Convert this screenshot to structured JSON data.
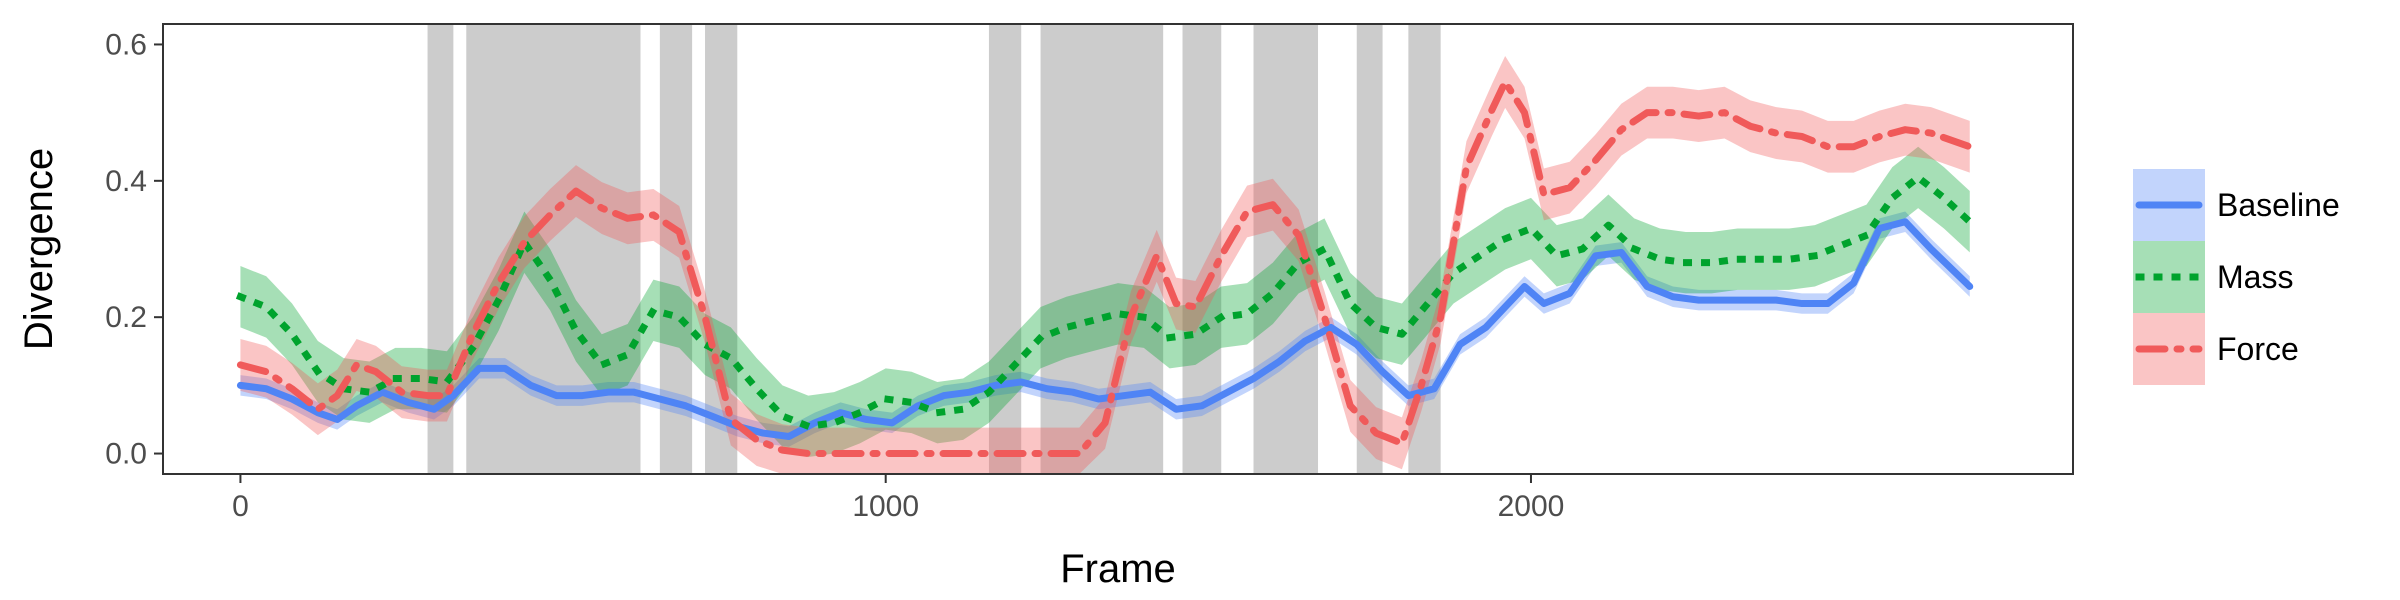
{
  "chart_data": {
    "type": "line",
    "xlabel": "Frame",
    "ylabel": "Divergence",
    "xlim": [
      -120,
      2840
    ],
    "ylim": [
      -0.03,
      0.63
    ],
    "xticks": [
      0,
      1000,
      2000
    ],
    "xtick_labels": [
      "0",
      "1000",
      "2000"
    ],
    "yticks": [
      0.0,
      0.2,
      0.4,
      0.6
    ],
    "ytick_labels": [
      "0.0",
      "0.2",
      "0.4",
      "0.6"
    ],
    "grid": false,
    "legend_position": "right",
    "shaded_intervals": [
      [
        290,
        330
      ],
      [
        350,
        620
      ],
      [
        650,
        700
      ],
      [
        720,
        770
      ],
      [
        1160,
        1210
      ],
      [
        1240,
        1430
      ],
      [
        1460,
        1520
      ],
      [
        1570,
        1670
      ],
      [
        1730,
        1770
      ],
      [
        1810,
        1860
      ]
    ],
    "series": [
      {
        "name": "Baseline",
        "color": "#4f84f5",
        "line_style": "solid",
        "points": [
          [
            0,
            0.1
          ],
          [
            40,
            0.095
          ],
          [
            80,
            0.08
          ],
          [
            120,
            0.06
          ],
          [
            150,
            0.05
          ],
          [
            180,
            0.07
          ],
          [
            220,
            0.09
          ],
          [
            260,
            0.075
          ],
          [
            300,
            0.065
          ],
          [
            330,
            0.085
          ],
          [
            370,
            0.125
          ],
          [
            410,
            0.125
          ],
          [
            450,
            0.1
          ],
          [
            490,
            0.085
          ],
          [
            530,
            0.085
          ],
          [
            570,
            0.09
          ],
          [
            610,
            0.09
          ],
          [
            650,
            0.08
          ],
          [
            690,
            0.07
          ],
          [
            730,
            0.055
          ],
          [
            770,
            0.04
          ],
          [
            810,
            0.03
          ],
          [
            850,
            0.025
          ],
          [
            890,
            0.045
          ],
          [
            930,
            0.06
          ],
          [
            970,
            0.05
          ],
          [
            1010,
            0.045
          ],
          [
            1050,
            0.07
          ],
          [
            1090,
            0.085
          ],
          [
            1130,
            0.09
          ],
          [
            1170,
            0.1
          ],
          [
            1210,
            0.105
          ],
          [
            1250,
            0.095
          ],
          [
            1290,
            0.09
          ],
          [
            1330,
            0.08
          ],
          [
            1370,
            0.085
          ],
          [
            1410,
            0.09
          ],
          [
            1450,
            0.065
          ],
          [
            1490,
            0.07
          ],
          [
            1530,
            0.09
          ],
          [
            1570,
            0.11
          ],
          [
            1610,
            0.135
          ],
          [
            1650,
            0.165
          ],
          [
            1690,
            0.185
          ],
          [
            1730,
            0.16
          ],
          [
            1770,
            0.12
          ],
          [
            1810,
            0.085
          ],
          [
            1850,
            0.095
          ],
          [
            1890,
            0.16
          ],
          [
            1930,
            0.185
          ],
          [
            1960,
            0.215
          ],
          [
            1990,
            0.245
          ],
          [
            2020,
            0.22
          ],
          [
            2060,
            0.235
          ],
          [
            2100,
            0.29
          ],
          [
            2140,
            0.295
          ],
          [
            2180,
            0.245
          ],
          [
            2220,
            0.23
          ],
          [
            2260,
            0.225
          ],
          [
            2300,
            0.225
          ],
          [
            2340,
            0.225
          ],
          [
            2380,
            0.225
          ],
          [
            2420,
            0.22
          ],
          [
            2460,
            0.22
          ],
          [
            2500,
            0.25
          ],
          [
            2540,
            0.33
          ],
          [
            2580,
            0.34
          ],
          [
            2620,
            0.3
          ],
          [
            2680,
            0.245
          ]
        ],
        "band_halfwidth": 0.015
      },
      {
        "name": "Mass",
        "color": "#00a32d",
        "line_style": "dotted",
        "points": [
          [
            0,
            0.23
          ],
          [
            40,
            0.215
          ],
          [
            80,
            0.175
          ],
          [
            120,
            0.12
          ],
          [
            160,
            0.095
          ],
          [
            200,
            0.09
          ],
          [
            240,
            0.11
          ],
          [
            280,
            0.11
          ],
          [
            320,
            0.105
          ],
          [
            360,
            0.155
          ],
          [
            400,
            0.225
          ],
          [
            440,
            0.31
          ],
          [
            480,
            0.255
          ],
          [
            520,
            0.18
          ],
          [
            560,
            0.13
          ],
          [
            600,
            0.145
          ],
          [
            640,
            0.21
          ],
          [
            680,
            0.2
          ],
          [
            720,
            0.16
          ],
          [
            760,
            0.14
          ],
          [
            800,
            0.095
          ],
          [
            840,
            0.055
          ],
          [
            880,
            0.04
          ],
          [
            920,
            0.045
          ],
          [
            960,
            0.06
          ],
          [
            1000,
            0.08
          ],
          [
            1040,
            0.075
          ],
          [
            1080,
            0.06
          ],
          [
            1120,
            0.065
          ],
          [
            1160,
            0.09
          ],
          [
            1200,
            0.13
          ],
          [
            1240,
            0.17
          ],
          [
            1280,
            0.185
          ],
          [
            1320,
            0.195
          ],
          [
            1360,
            0.205
          ],
          [
            1400,
            0.2
          ],
          [
            1440,
            0.17
          ],
          [
            1480,
            0.175
          ],
          [
            1520,
            0.2
          ],
          [
            1560,
            0.205
          ],
          [
            1600,
            0.235
          ],
          [
            1640,
            0.28
          ],
          [
            1680,
            0.3
          ],
          [
            1720,
            0.22
          ],
          [
            1760,
            0.185
          ],
          [
            1800,
            0.175
          ],
          [
            1840,
            0.22
          ],
          [
            1880,
            0.265
          ],
          [
            1920,
            0.29
          ],
          [
            1960,
            0.315
          ],
          [
            2000,
            0.33
          ],
          [
            2040,
            0.29
          ],
          [
            2080,
            0.3
          ],
          [
            2120,
            0.335
          ],
          [
            2160,
            0.3
          ],
          [
            2200,
            0.285
          ],
          [
            2240,
            0.28
          ],
          [
            2280,
            0.28
          ],
          [
            2320,
            0.285
          ],
          [
            2360,
            0.285
          ],
          [
            2400,
            0.285
          ],
          [
            2440,
            0.29
          ],
          [
            2480,
            0.305
          ],
          [
            2520,
            0.32
          ],
          [
            2560,
            0.375
          ],
          [
            2600,
            0.405
          ],
          [
            2640,
            0.375
          ],
          [
            2680,
            0.34
          ]
        ],
        "band_halfwidth": 0.045
      },
      {
        "name": "Force",
        "color": "#f05a5a",
        "line_style": "dotdash",
        "points": [
          [
            0,
            0.13
          ],
          [
            40,
            0.12
          ],
          [
            80,
            0.095
          ],
          [
            120,
            0.065
          ],
          [
            150,
            0.085
          ],
          [
            180,
            0.13
          ],
          [
            210,
            0.12
          ],
          [
            250,
            0.09
          ],
          [
            290,
            0.085
          ],
          [
            320,
            0.085
          ],
          [
            360,
            0.175
          ],
          [
            400,
            0.25
          ],
          [
            440,
            0.31
          ],
          [
            480,
            0.35
          ],
          [
            520,
            0.385
          ],
          [
            560,
            0.36
          ],
          [
            600,
            0.345
          ],
          [
            640,
            0.35
          ],
          [
            680,
            0.325
          ],
          [
            720,
            0.2
          ],
          [
            760,
            0.05
          ],
          [
            800,
            0.02
          ],
          [
            840,
            0.005
          ],
          [
            880,
            0.0
          ],
          [
            1000,
            0.0
          ],
          [
            1100,
            0.0
          ],
          [
            1200,
            0.0
          ],
          [
            1300,
            0.0
          ],
          [
            1340,
            0.045
          ],
          [
            1380,
            0.2
          ],
          [
            1420,
            0.29
          ],
          [
            1450,
            0.22
          ],
          [
            1480,
            0.215
          ],
          [
            1520,
            0.29
          ],
          [
            1560,
            0.355
          ],
          [
            1600,
            0.365
          ],
          [
            1640,
            0.32
          ],
          [
            1680,
            0.2
          ],
          [
            1720,
            0.07
          ],
          [
            1760,
            0.03
          ],
          [
            1800,
            0.015
          ],
          [
            1830,
            0.1
          ],
          [
            1860,
            0.2
          ],
          [
            1900,
            0.42
          ],
          [
            1940,
            0.505
          ],
          [
            1960,
            0.545
          ],
          [
            1990,
            0.5
          ],
          [
            2020,
            0.38
          ],
          [
            2060,
            0.39
          ],
          [
            2100,
            0.43
          ],
          [
            2140,
            0.475
          ],
          [
            2180,
            0.5
          ],
          [
            2220,
            0.5
          ],
          [
            2260,
            0.495
          ],
          [
            2300,
            0.5
          ],
          [
            2340,
            0.48
          ],
          [
            2380,
            0.47
          ],
          [
            2420,
            0.465
          ],
          [
            2460,
            0.45
          ],
          [
            2500,
            0.45
          ],
          [
            2540,
            0.465
          ],
          [
            2580,
            0.475
          ],
          [
            2620,
            0.47
          ],
          [
            2680,
            0.45
          ]
        ],
        "band_halfwidth": 0.038
      }
    ]
  }
}
